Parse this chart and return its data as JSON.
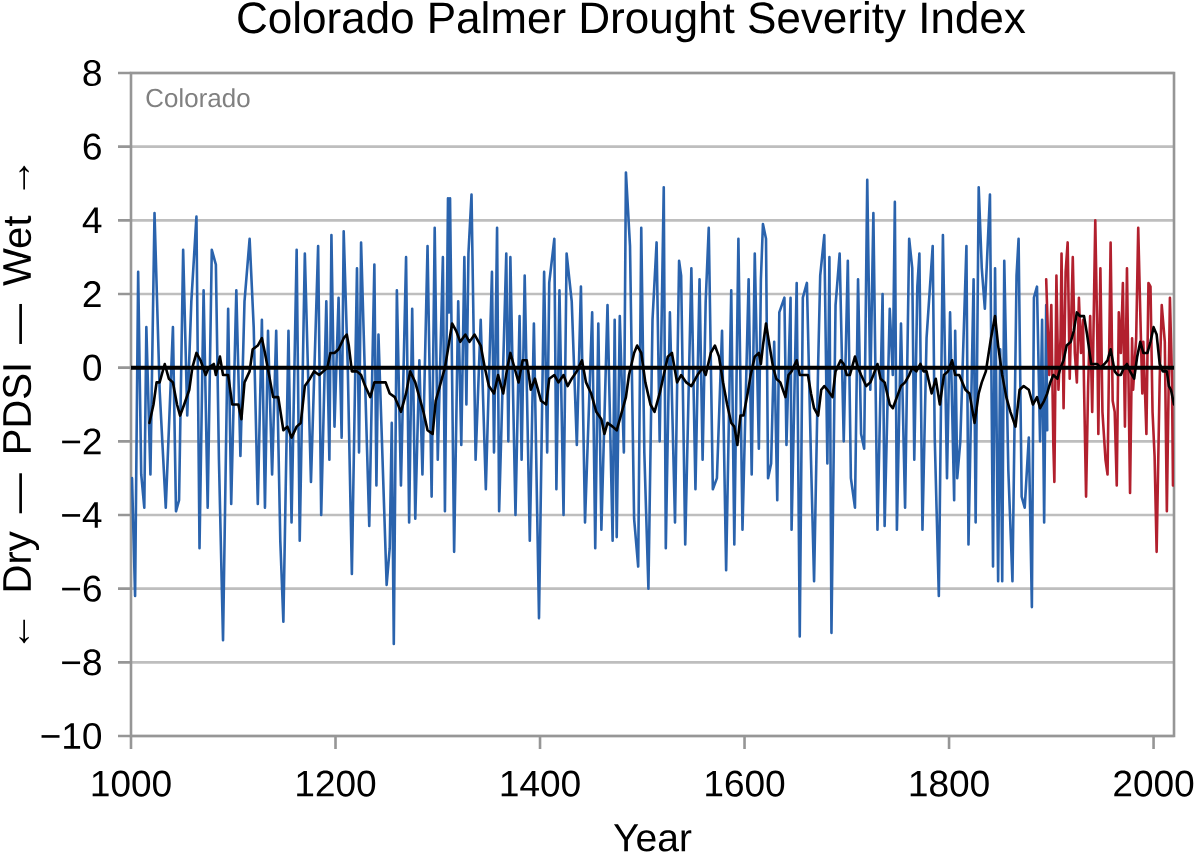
{
  "chart_data": {
    "type": "line",
    "title": "Colorado Palmer Drought Severity Index",
    "xlabel": "Year",
    "ylabel": "← Dry — PDSI — Wet →",
    "annotations": [
      "Colorado"
    ],
    "xlim": [
      1000,
      2020
    ],
    "ylim": [
      -10,
      8
    ],
    "xticks": [
      1000,
      1200,
      1400,
      1600,
      1800,
      2000
    ],
    "yticks": [
      {
        "value": -10,
        "label": "−10"
      },
      {
        "value": -8,
        "label": "−8"
      },
      {
        "value": -6,
        "label": "−6"
      },
      {
        "value": -4,
        "label": "−4"
      },
      {
        "value": -2,
        "label": "−2"
      },
      0,
      2,
      4,
      6,
      8
    ],
    "grid": "y",
    "ref_lines": [
      {
        "axis": "y",
        "value": 0,
        "color": "#000000"
      }
    ],
    "series": [
      {
        "color": "#2a63ad",
        "x": [
          1001,
          1004,
          1007,
          1010,
          1013,
          1015,
          1019,
          1023,
          1028,
          1034,
          1041,
          1044,
          1047,
          1051,
          1055,
          1059,
          1064,
          1067,
          1071,
          1075,
          1079,
          1083,
          1086,
          1090,
          1095,
          1098,
          1103,
          1107,
          1111,
          1116,
          1120,
          1124,
          1128,
          1131,
          1134,
          1138,
          1142,
          1146,
          1149,
          1154,
          1157,
          1162,
          1165,
          1170,
          1176,
          1183,
          1186,
          1191,
          1194,
          1196,
          1199,
          1203,
          1206,
          1208,
          1212,
          1216,
          1221,
          1223,
          1225,
          1233,
          1238,
          1240,
          1242,
          1250,
          1253,
          1255,
          1257,
          1260,
          1264,
          1269,
          1272,
          1275,
          1278,
          1282,
          1285,
          1290,
          1294,
          1297,
          1300,
          1305,
          1307,
          1310,
          1311,
          1312,
          1316,
          1320,
          1323,
          1326,
          1328,
          1330,
          1333,
          1337,
          1342,
          1347,
          1353,
          1355,
          1358,
          1360,
          1367,
          1369,
          1371,
          1376,
          1380,
          1382,
          1385,
          1390,
          1394,
          1399,
          1404,
          1407,
          1409,
          1414,
          1416,
          1419,
          1423,
          1426,
          1431,
          1436,
          1440,
          1444,
          1451,
          1454,
          1457,
          1460,
          1466,
          1471,
          1473,
          1475,
          1478,
          1482,
          1484,
          1488,
          1492,
          1496,
          1499,
          1502,
          1506,
          1510,
          1514,
          1517,
          1521,
          1523,
          1527,
          1532,
          1536,
          1538,
          1542,
          1548,
          1552,
          1556,
          1559,
          1562,
          1565,
          1569,
          1573,
          1578,
          1582,
          1587,
          1590,
          1594,
          1598,
          1604,
          1607,
          1610,
          1614,
          1616,
          1618,
          1621,
          1623,
          1626,
          1629,
          1632,
          1634,
          1639,
          1641,
          1645,
          1646,
          1651,
          1654,
          1657,
          1661,
          1665,
          1668,
          1672,
          1674,
          1678,
          1681,
          1683,
          1685,
          1689,
          1693,
          1697,
          1701,
          1704,
          1708,
          1711,
          1714,
          1717,
          1720,
          1723,
          1726,
          1730,
          1735,
          1737,
          1742,
          1745,
          1747,
          1749,
          1753,
          1757,
          1761,
          1764,
          1766,
          1769,
          1771,
          1774,
          1778,
          1784,
          1786,
          1790,
          1794,
          1798,
          1801,
          1805,
          1806,
          1808,
          1811,
          1817,
          1819,
          1824,
          1826,
          1829,
          1832,
          1835,
          1840,
          1843,
          1845,
          1848,
          1850,
          1852,
          1854,
          1858,
          1862,
          1866,
          1868,
          1871,
          1874,
          1878,
          1881,
          1883,
          1886,
          1889,
          1891,
          1893,
          1895,
          1896
        ],
        "values": [
          -3.0,
          -6.2,
          2.6,
          -2.9,
          -3.8,
          1.1,
          -2.9,
          4.2,
          -0.6,
          -3.8,
          1.1,
          -3.9,
          -3.6,
          3.2,
          -1.3,
          1.8,
          4.1,
          -4.9,
          2.1,
          -3.8,
          3.2,
          2.8,
          -2.5,
          -7.4,
          1.6,
          -3.7,
          2.1,
          -2.4,
          1.8,
          3.5,
          1.1,
          -3.7,
          1.3,
          -3.8,
          1.0,
          -2.9,
          1.0,
          -4.7,
          -6.9,
          1.0,
          -4.2,
          3.2,
          -4.7,
          3.1,
          -3.1,
          3.3,
          -4.0,
          1.8,
          -2.5,
          3.6,
          -1.6,
          1.9,
          -1.9,
          3.7,
          0.0,
          -5.6,
          2.7,
          -2.3,
          3.4,
          -4.3,
          2.8,
          -3.2,
          0.9,
          -5.9,
          -4.9,
          -1.5,
          -7.5,
          2.1,
          -3.2,
          3.0,
          -4.2,
          1.6,
          -4.1,
          0.2,
          -2.9,
          3.3,
          -3.5,
          3.8,
          -2.5,
          3.0,
          -3.9,
          4.6,
          1.5,
          4.6,
          -5.0,
          1.8,
          -2.1,
          3.0,
          -1.0,
          3.1,
          4.7,
          -2.5,
          1.3,
          -3.3,
          2.6,
          -2.3,
          3.8,
          -3.9,
          3.1,
          -2.0,
          3.0,
          -4.0,
          1.4,
          -2.5,
          2.5,
          -4.7,
          1.2,
          -6.8,
          2.6,
          -2.3,
          2.3,
          3.5,
          -3.3,
          2.1,
          -4.0,
          3.1,
          1.8,
          -2.1,
          2.2,
          -4.2,
          1.5,
          -4.9,
          1.2,
          -4.4,
          1.7,
          -4.7,
          1.3,
          -4.6,
          1.4,
          -2.3,
          5.3,
          3.3,
          -4.1,
          -5.4,
          3.8,
          -2.3,
          -6.0,
          1.3,
          3.4,
          -2.0,
          4.9,
          -4.9,
          1.5,
          -4.2,
          2.9,
          2.5,
          -4.8,
          2.7,
          -3.3,
          2.4,
          -2.5,
          1.8,
          3.8,
          -3.3,
          -3.0,
          1.0,
          -5.5,
          2.1,
          -4.8,
          3.5,
          -4.4,
          2.4,
          -2.9,
          3.1,
          -2.2,
          2.4,
          3.9,
          3.5,
          -3.0,
          -2.6,
          0.7,
          -3.6,
          1.5,
          1.9,
          -2.1,
          1.9,
          -4.4,
          2.3,
          -7.3,
          1.9,
          2.3,
          -2.5,
          -5.8,
          0.1,
          2.5,
          3.6,
          -2.6,
          3.0,
          -7.2,
          1.7,
          3.1,
          -2.0,
          2.9,
          -3.0,
          -3.8,
          2.4,
          -1.8,
          -2.2,
          5.1,
          -0.6,
          4.2,
          -4.4,
          2.0,
          -4.3,
          1.6,
          -0.2,
          4.5,
          -4.4,
          1.2,
          -3.8,
          3.5,
          2.7,
          -2.5,
          2.2,
          3.1,
          -4.4,
          0.8,
          3.3,
          -1.9,
          -6.2,
          3.6,
          -3.0,
          1.5,
          -3.6,
          1.0,
          -3.0,
          -2.0,
          3.3,
          -4.8,
          2.4,
          -4.2,
          4.9,
          2.7,
          1.6,
          4.7,
          -5.4,
          2.7,
          -5.8,
          0.5,
          -5.8,
          2.9,
          -2.8,
          -5.8,
          2.5,
          3.5,
          -3.5,
          -3.8,
          -1.9,
          -6.5,
          1.9,
          2.2,
          -2.0,
          1.3,
          -4.2,
          1.7,
          -1.7
        ]
      },
      {
        "color": "#b2202e",
        "x": [
          1895,
          1898,
          1900,
          1902,
          1903,
          1905,
          1907,
          1909,
          1910,
          1912,
          1914,
          1916,
          1918,
          1921,
          1923,
          1925,
          1927,
          1929,
          1931,
          1932,
          1934,
          1936,
          1938,
          1940,
          1943,
          1945,
          1946,
          1948,
          1950,
          1953,
          1955,
          1958,
          1960,
          1962,
          1964,
          1966,
          1968,
          1970,
          1972,
          1974,
          1977,
          1979,
          1980,
          1983,
          1985,
          1987,
          1989,
          1990,
          1993,
          1995,
          1997,
          1999,
          2001,
          2003,
          2006,
          2008,
          2011,
          2013,
          2015,
          2016,
          2018,
          2019
        ],
        "values": [
          2.4,
          -0.2,
          1.7,
          -2.1,
          -3.1,
          2.5,
          -0.6,
          0.8,
          3.1,
          -1.1,
          2.6,
          3.4,
          -0.3,
          3.0,
          0.4,
          -0.4,
          1.9,
          0.4,
          1.3,
          -0.5,
          -3.5,
          -0.5,
          1.4,
          -1.2,
          4.0,
          0.8,
          -1.8,
          2.7,
          -1.2,
          -2.5,
          -2.9,
          3.4,
          -0.9,
          -1.2,
          -3.2,
          1.5,
          0.4,
          2.3,
          -1.6,
          2.7,
          -3.4,
          0.8,
          -0.6,
          0.8,
          3.8,
          1.5,
          -0.7,
          0.7,
          -1.8,
          2.3,
          2.2,
          -1.2,
          -2.4,
          -5.0,
          -0.3,
          1.7,
          0.7,
          -3.9,
          0.0,
          1.9,
          -0.3,
          -3.2
        ]
      },
      {
        "color": "#000000",
        "x": [
          1018,
          1022,
          1025,
          1028,
          1033,
          1037,
          1041,
          1045,
          1048,
          1052,
          1057,
          1060,
          1064,
          1068,
          1073,
          1076,
          1081,
          1083,
          1087,
          1090,
          1095,
          1099,
          1105,
          1108,
          1111,
          1116,
          1119,
          1124,
          1128,
          1131,
          1135,
          1139,
          1144,
          1149,
          1153,
          1157,
          1162,
          1166,
          1170,
          1175,
          1179,
          1184,
          1188,
          1192,
          1195,
          1199,
          1203,
          1208,
          1211,
          1213,
          1216,
          1221,
          1225,
          1229,
          1234,
          1238,
          1245,
          1249,
          1253,
          1258,
          1264,
          1269,
          1273,
          1278,
          1282,
          1286,
          1290,
          1295,
          1298,
          1302,
          1307,
          1310,
          1314,
          1318,
          1322,
          1327,
          1331,
          1336,
          1342,
          1346,
          1350,
          1355,
          1359,
          1364,
          1368,
          1371,
          1374,
          1379,
          1383,
          1387,
          1391,
          1395,
          1401,
          1406,
          1409,
          1414,
          1418,
          1423,
          1427,
          1431,
          1436,
          1441,
          1445,
          1450,
          1455,
          1460,
          1463,
          1466,
          1471,
          1475,
          1479,
          1484,
          1487,
          1492,
          1495,
          1499,
          1503,
          1508,
          1512,
          1517,
          1521,
          1525,
          1529,
          1534,
          1538,
          1543,
          1548,
          1554,
          1559,
          1562,
          1567,
          1571,
          1575,
          1579,
          1583,
          1587,
          1590,
          1593,
          1596,
          1599,
          1603,
          1606,
          1610,
          1614,
          1616,
          1618,
          1621,
          1625,
          1628,
          1631,
          1635,
          1640,
          1643,
          1646,
          1651,
          1654,
          1657,
          1662,
          1665,
          1668,
          1672,
          1675,
          1678,
          1681,
          1686,
          1689,
          1694,
          1697,
          1700,
          1703,
          1708,
          1711,
          1714,
          1719,
          1723,
          1726,
          1730,
          1733,
          1737,
          1742,
          1745,
          1749,
          1753,
          1757,
          1761,
          1764,
          1768,
          1772,
          1775,
          1778,
          1783,
          1787,
          1791,
          1795,
          1799,
          1803,
          1806,
          1810,
          1816,
          1820,
          1825,
          1829,
          1832,
          1836,
          1841,
          1845,
          1848,
          1852,
          1856,
          1860,
          1865,
          1869,
          1873,
          1878,
          1882,
          1886,
          1889,
          1893,
          1896,
          1899,
          1902,
          1906,
          1909,
          1912,
          1915,
          1919,
          1922,
          1925,
          1928,
          1932,
          1935,
          1939,
          1941,
          1945,
          1948,
          1952,
          1955,
          1958,
          1962,
          1965,
          1968,
          1971,
          1974,
          1977,
          1981,
          1984,
          1987,
          1990,
          1994,
          1997,
          2000,
          2003,
          2006,
          2009,
          2013,
          2015,
          2017,
          2020
        ],
        "values": [
          -1.5,
          -1.0,
          -0.4,
          -0.4,
          0.1,
          -0.3,
          -0.4,
          -1.0,
          -1.3,
          -1.0,
          -0.6,
          0.0,
          0.4,
          0.2,
          -0.2,
          0.0,
          0.1,
          -0.2,
          0.3,
          -0.2,
          -0.2,
          -1.0,
          -1.0,
          -1.4,
          -0.4,
          -0.1,
          0.5,
          0.6,
          0.8,
          0.4,
          -0.2,
          -0.8,
          -0.8,
          -1.7,
          -1.6,
          -1.9,
          -1.6,
          -1.5,
          -0.5,
          -0.3,
          -0.1,
          -0.2,
          -0.1,
          0.0,
          0.4,
          0.4,
          0.5,
          0.8,
          0.9,
          0.6,
          -0.1,
          -0.1,
          -0.2,
          -0.5,
          -0.8,
          -0.4,
          -0.4,
          -0.4,
          -0.7,
          -0.8,
          -1.2,
          -0.7,
          -0.1,
          -0.4,
          -0.8,
          -1.2,
          -1.7,
          -1.8,
          -0.9,
          -0.5,
          0.0,
          0.5,
          1.2,
          1.0,
          0.7,
          0.9,
          0.7,
          0.9,
          0.6,
          0.0,
          -0.5,
          -0.7,
          -0.2,
          -0.7,
          0.0,
          0.4,
          0.1,
          -0.4,
          0.2,
          0.2,
          -0.6,
          -0.3,
          -0.9,
          -1.0,
          -0.3,
          -0.2,
          -0.4,
          -0.2,
          -0.5,
          -0.3,
          -0.1,
          0.2,
          -0.4,
          -0.7,
          -1.2,
          -1.4,
          -1.8,
          -1.5,
          -1.6,
          -1.7,
          -1.3,
          -0.8,
          -0.2,
          0.4,
          0.6,
          0.4,
          -0.4,
          -1.0,
          -1.2,
          -0.7,
          -0.2,
          0.3,
          0.4,
          -0.4,
          -0.2,
          -0.4,
          -0.5,
          -0.2,
          0.0,
          -0.2,
          0.4,
          0.6,
          0.3,
          -0.4,
          -1.0,
          -1.5,
          -1.6,
          -2.1,
          -1.3,
          -1.3,
          -0.7,
          -0.2,
          0.3,
          0.4,
          0.1,
          0.6,
          1.2,
          0.5,
          0.0,
          -0.3,
          -0.4,
          -0.8,
          -0.2,
          -0.1,
          0.2,
          -0.2,
          -0.2,
          -0.2,
          -0.7,
          -1.1,
          -1.3,
          -0.6,
          -0.5,
          -0.6,
          -0.8,
          -0.1,
          0.2,
          0.1,
          -0.2,
          -0.2,
          0.3,
          0.0,
          -0.2,
          -0.5,
          -0.4,
          -0.2,
          0.1,
          -0.3,
          -0.4,
          -1.0,
          -1.1,
          -0.8,
          -0.5,
          -0.4,
          -0.2,
          0.0,
          -0.1,
          0.1,
          -0.1,
          -0.1,
          -0.7,
          -0.3,
          -1.0,
          -0.2,
          -0.1,
          0.2,
          -0.2,
          -0.2,
          -0.6,
          -0.7,
          -1.5,
          -0.7,
          -0.4,
          -0.1,
          0.8,
          1.4,
          0.6,
          -0.2,
          -0.8,
          -1.2,
          -1.6,
          -0.6,
          -0.5,
          -0.6,
          -1.0,
          -0.8,
          -1.1,
          -0.9,
          -0.7,
          -0.4,
          -0.2,
          -0.3,
          0.0,
          0.2,
          0.6,
          0.7,
          1.0,
          1.5,
          1.4,
          1.4,
          0.9,
          0.1,
          0.1,
          0.1,
          0.0,
          0.1,
          0.2,
          0.5,
          -0.1,
          -0.2,
          -0.2,
          0.0,
          0.1,
          -0.1,
          -0.3,
          0.3,
          0.7,
          0.4,
          0.4,
          0.7,
          1.1,
          0.9,
          0.1,
          -0.1,
          -0.1,
          -0.5,
          -0.6,
          -1.0
        ]
      }
    ]
  }
}
